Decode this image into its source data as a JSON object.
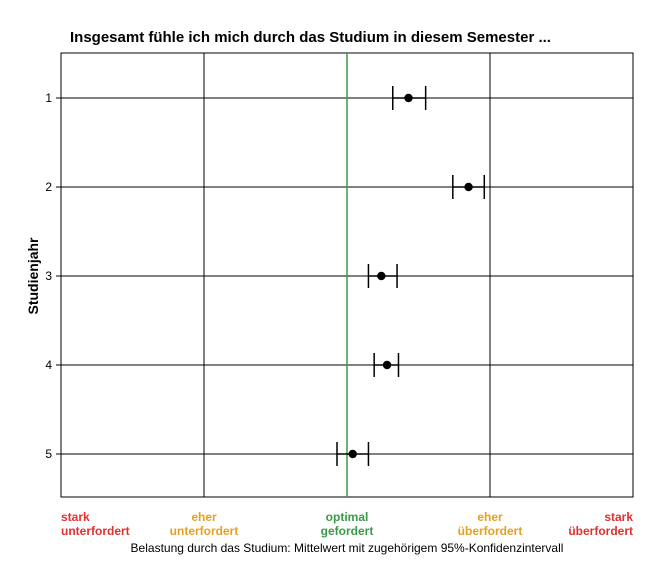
{
  "chart_data": {
    "type": "scatter",
    "title": "Insgesamt fühle ich mich durch das Studium in diesem Semester ...",
    "xlabel": "Belastung durch das Studium: Mittelwert mit zugehörigem 95%-Konfidenzintervall",
    "ylabel": "Studienjahr",
    "xlim": [
      1,
      5
    ],
    "grid": true,
    "reference_line": {
      "x": 3,
      "color": "#3a9a4a"
    },
    "x_categories": [
      {
        "value": 1,
        "lines": [
          "stark",
          "unterfordert"
        ],
        "color": "#e03030"
      },
      {
        "value": 2,
        "lines": [
          "eher",
          "unterfordert"
        ],
        "color": "#e8a020"
      },
      {
        "value": 3,
        "lines": [
          "optimal",
          "gefordert"
        ],
        "color": "#3a9a4a"
      },
      {
        "value": 4,
        "lines": [
          "eher",
          "überfordert"
        ],
        "color": "#e8a020"
      },
      {
        "value": 5,
        "lines": [
          "stark",
          "überfordert"
        ],
        "color": "#e03030"
      }
    ],
    "categories": [
      "1",
      "2",
      "3",
      "4",
      "5"
    ],
    "series": [
      {
        "means": [
          3.43,
          3.85,
          3.24,
          3.28,
          3.04
        ],
        "ci_low": [
          3.32,
          3.74,
          3.15,
          3.19,
          2.93
        ],
        "ci_high": [
          3.55,
          3.96,
          3.35,
          3.36,
          3.15
        ]
      }
    ]
  }
}
